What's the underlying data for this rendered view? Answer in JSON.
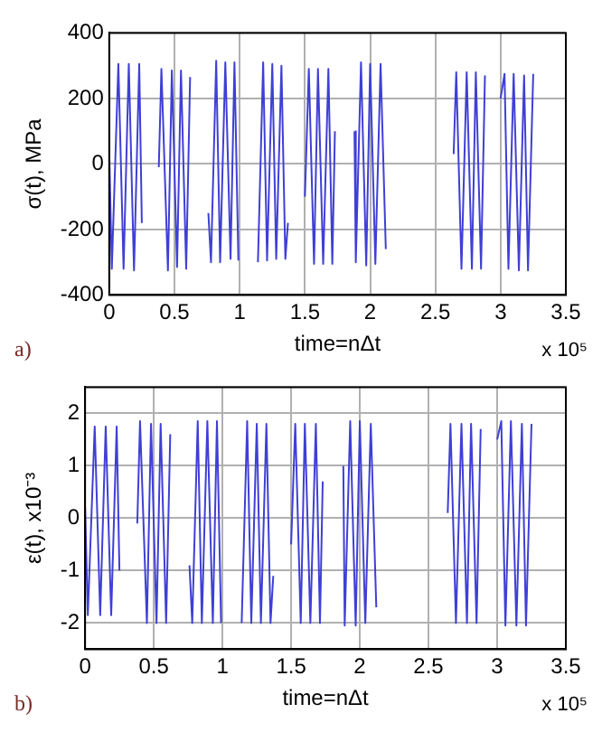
{
  "chart_data": [
    {
      "type": "line",
      "ylabel": "σ(t), MPa",
      "xlabel": "time=nΔt",
      "annotations": [
        "a)",
        "x 10⁵"
      ],
      "xlim": [
        0,
        3.5
      ],
      "xticks": [
        0,
        0.5,
        1,
        1.5,
        2,
        2.5,
        3,
        3.5
      ],
      "ylim": [
        -400,
        400
      ],
      "yticks": [
        -400,
        -200,
        0,
        200,
        400
      ],
      "grid": true,
      "marker": "none",
      "line_style": "solid",
      "series": [
        {
          "color": "#3f3fd6",
          "x": [
            0,
            0.02,
            0.07,
            0.11,
            0.15,
            0.19,
            0.23,
            0.25,
            0.31,
            0.38,
            0.4,
            0.45,
            0.48,
            0.52,
            0.55,
            0.59,
            0.62,
            0.69,
            0.76,
            0.78,
            0.82,
            0.85,
            0.89,
            0.93,
            0.96,
            0.99,
            1.06,
            1.14,
            1.18,
            1.21,
            1.25,
            1.28,
            1.32,
            1.35,
            1.37,
            1.44,
            1.5,
            1.53,
            1.57,
            1.6,
            1.64,
            1.68,
            1.71,
            1.73,
            1.8,
            1.88,
            1.89,
            1.93,
            1.97,
            2,
            2.04,
            2.08,
            2.12,
            2.4,
            2.64,
            2.66,
            2.7,
            2.74,
            2.78,
            2.81,
            2.85,
            2.88,
            2.94,
            3,
            3.03,
            3.06,
            3.1,
            3.14,
            3.18,
            3.21,
            3.25
          ],
          "values": [
            40,
            -320,
            305,
            -320,
            305,
            -325,
            305,
            -180,
            null,
            -10,
            290,
            -325,
            285,
            -315,
            285,
            -320,
            265,
            null,
            -150,
            -300,
            315,
            -300,
            310,
            -290,
            310,
            -295,
            null,
            -300,
            310,
            -295,
            305,
            -290,
            300,
            -290,
            -180,
            null,
            -100,
            290,
            -305,
            290,
            -305,
            290,
            -305,
            100,
            null,
            100,
            -300,
            310,
            -310,
            305,
            -305,
            305,
            -260,
            null,
            30,
            280,
            -320,
            280,
            -320,
            280,
            -320,
            270,
            null,
            200,
            275,
            -320,
            275,
            -325,
            270,
            -325,
            275
          ]
        }
      ]
    },
    {
      "type": "line",
      "ylabel": "ε(t), x10⁻³",
      "xlabel": "time=nΔt",
      "annotations": [
        "b)",
        "x 10⁵"
      ],
      "xlim": [
        0,
        3.5
      ],
      "xticks": [
        0,
        0.5,
        1,
        1.5,
        2,
        2.5,
        3,
        3.5
      ],
      "ylim": [
        -2.5,
        2.5
      ],
      "yticks": [
        {
          "value": -2.5,
          "label": null
        },
        -2,
        -1,
        0,
        1,
        2,
        {
          "value": 2.5,
          "label": null
        }
      ],
      "grid": true,
      "marker": "none",
      "line_style": "solid",
      "series": [
        {
          "color": "#3f3fd6",
          "x": [
            0,
            0.02,
            0.07,
            0.11,
            0.15,
            0.19,
            0.23,
            0.25,
            0.31,
            0.38,
            0.4,
            0.45,
            0.48,
            0.52,
            0.55,
            0.59,
            0.62,
            0.69,
            0.76,
            0.78,
            0.82,
            0.85,
            0.89,
            0.93,
            0.96,
            0.99,
            1.06,
            1.14,
            1.18,
            1.21,
            1.25,
            1.28,
            1.32,
            1.35,
            1.37,
            1.44,
            1.5,
            1.53,
            1.57,
            1.6,
            1.64,
            1.68,
            1.71,
            1.73,
            1.8,
            1.88,
            1.89,
            1.93,
            1.97,
            2,
            2.04,
            2.08,
            2.12,
            2.4,
            2.64,
            2.66,
            2.7,
            2.74,
            2.78,
            2.81,
            2.85,
            2.88,
            2.94,
            3,
            3.03,
            3.06,
            3.1,
            3.14,
            3.18,
            3.21,
            3.25
          ],
          "values": [
            0.2,
            -1.85,
            1.75,
            -1.85,
            1.75,
            -1.85,
            1.75,
            -1,
            null,
            -0.1,
            1.85,
            -2,
            1.8,
            -2,
            1.8,
            -2,
            1.6,
            null,
            -0.9,
            -2,
            1.85,
            -2,
            1.85,
            -2,
            1.85,
            -2,
            null,
            -2,
            1.85,
            -2,
            1.8,
            -2,
            1.8,
            -2,
            -1.1,
            null,
            -0.5,
            1.8,
            -2,
            1.8,
            -2,
            1.8,
            -2,
            0.7,
            null,
            1,
            -2.05,
            1.85,
            -2.05,
            1.85,
            -2,
            1.8,
            -1.7,
            null,
            0.1,
            1.8,
            -2,
            1.8,
            -2,
            1.8,
            -2,
            1.7,
            null,
            1.5,
            1.85,
            -2.05,
            1.85,
            -2.05,
            1.8,
            -2.05,
            1.8
          ]
        }
      ]
    }
  ]
}
